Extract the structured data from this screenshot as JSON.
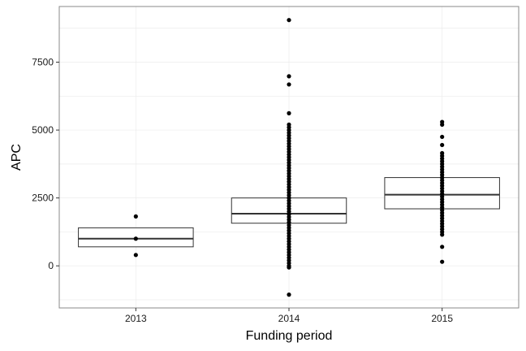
{
  "chart_data": {
    "type": "boxplot",
    "xlabel": "Funding period",
    "ylabel": "APC",
    "categories": [
      "2013",
      "2014",
      "2015"
    ],
    "ylim": [
      -1550,
      9550
    ],
    "yticks": [
      0,
      2500,
      5000,
      7500
    ],
    "ytick_labels": [
      "0",
      "2500",
      "5000",
      "7500"
    ],
    "grid": true,
    "boxes": [
      {
        "category": "2013",
        "q1": 700,
        "median": 1000,
        "q3": 1400,
        "points": [
          1820,
          1000,
          400
        ]
      },
      {
        "category": "2014",
        "q1": 1570,
        "median": 1920,
        "q3": 2500,
        "points": [
          9050,
          6980,
          6680,
          5620,
          5200,
          5100,
          5000,
          4900,
          4800,
          4700,
          4600,
          4500,
          4400,
          4300,
          4200,
          4100,
          4000,
          3900,
          3800,
          3700,
          3600,
          3500,
          3400,
          3300,
          3200,
          3100,
          3000,
          2900,
          2800,
          2700,
          2600,
          2500,
          2400,
          2300,
          2200,
          2100,
          2000,
          1900,
          1800,
          1700,
          1600,
          1500,
          1400,
          1300,
          1200,
          1100,
          1000,
          900,
          800,
          700,
          600,
          500,
          400,
          300,
          200,
          100,
          0,
          -60,
          -1060
        ]
      },
      {
        "category": "2015",
        "q1": 2100,
        "median": 2620,
        "q3": 3250,
        "points": [
          5300,
          5200,
          4750,
          4450,
          4150,
          4050,
          3950,
          3850,
          3750,
          3650,
          3550,
          3450,
          3350,
          3250,
          3150,
          3050,
          2950,
          2850,
          2750,
          2650,
          2550,
          2450,
          2350,
          2250,
          2150,
          2050,
          1950,
          1850,
          1750,
          1650,
          1550,
          1450,
          1350,
          1250,
          1150,
          700,
          150
        ]
      }
    ]
  },
  "colors": {
    "panel_border": "#888888",
    "grid": "#ebebeb",
    "box_line": "#333333",
    "point": "#000000"
  }
}
